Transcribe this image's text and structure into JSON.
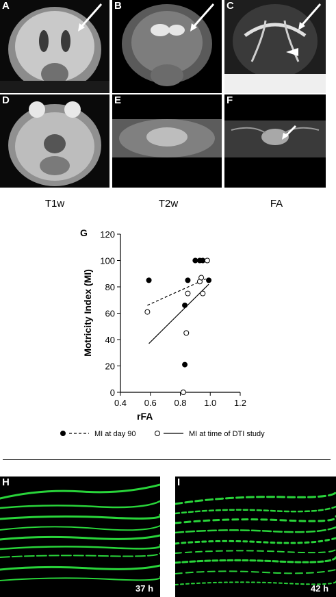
{
  "panels": {
    "mri": [
      {
        "letter": "A",
        "row": 0,
        "col": 0,
        "kind": "coronal-t1"
      },
      {
        "letter": "B",
        "row": 0,
        "col": 1,
        "kind": "coronal-t2"
      },
      {
        "letter": "C",
        "row": 0,
        "col": 2,
        "kind": "coronal-fa"
      },
      {
        "letter": "D",
        "row": 1,
        "col": 0,
        "kind": "axial-t1"
      },
      {
        "letter": "E",
        "row": 1,
        "col": 1,
        "kind": "axial-t2"
      },
      {
        "letter": "F",
        "row": 1,
        "col": 2,
        "kind": "axial-fa"
      }
    ],
    "column_headers": [
      "T1w",
      "T2w",
      "FA"
    ],
    "micro": [
      {
        "letter": "H",
        "time": "37 h"
      },
      {
        "letter": "I",
        "time": "42 h"
      }
    ]
  },
  "chart_panel_letter": "G",
  "chart_data": {
    "type": "scatter",
    "xlabel": "rFA",
    "ylabel": "Motricity Index (MI)",
    "xlim": [
      0.4,
      1.2
    ],
    "ylim": [
      0,
      120
    ],
    "xticks": [
      "0.4",
      "0.6",
      "0.8",
      "1.0",
      "1.2"
    ],
    "yticks": [
      "0",
      "20",
      "40",
      "60",
      "80",
      "100",
      "120"
    ],
    "series": [
      {
        "name": "MI at day 90",
        "marker": "filled",
        "line": "dashed",
        "points": [
          [
            0.59,
            85
          ],
          [
            0.83,
            66
          ],
          [
            0.83,
            21
          ],
          [
            0.85,
            85
          ],
          [
            0.9,
            100
          ],
          [
            0.93,
            100
          ],
          [
            0.95,
            100
          ],
          [
            0.99,
            85
          ]
        ],
        "fit": [
          [
            0.58,
            66
          ],
          [
            0.97,
            86
          ]
        ]
      },
      {
        "name": "MI at time of DTI study",
        "marker": "open",
        "line": "solid",
        "points": [
          [
            0.58,
            61
          ],
          [
            0.82,
            0
          ],
          [
            0.84,
            45
          ],
          [
            0.85,
            75
          ],
          [
            0.93,
            84
          ],
          [
            0.94,
            87
          ],
          [
            0.95,
            75
          ],
          [
            0.98,
            100
          ]
        ],
        "fit": [
          [
            0.59,
            37
          ],
          [
            0.99,
            82
          ]
        ]
      }
    ]
  },
  "colors": {
    "fiber": "#29d43a",
    "background": "#000000"
  }
}
